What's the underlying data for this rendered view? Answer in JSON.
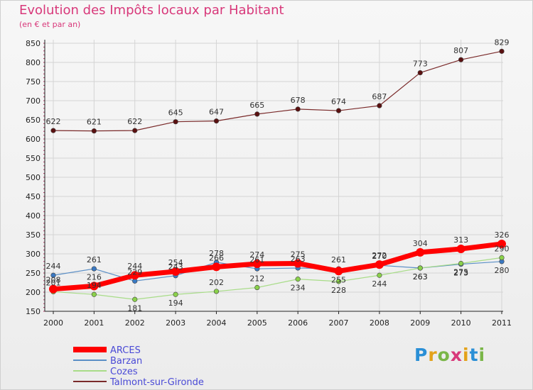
{
  "title": "Evolution des Impôts locaux par Habitant",
  "subtitle": "(en € et par an)",
  "logo": {
    "letters": [
      "P",
      "r",
      "o",
      "x",
      "i",
      "t",
      "i"
    ],
    "colors": [
      "#2a8fd6",
      "#e3a21a",
      "#7ab648",
      "#d8387a",
      "#e3a21a",
      "#2a8fd6",
      "#7ab648"
    ]
  },
  "chart_data": {
    "type": "line",
    "title": "Evolution des Impôts locaux par Habitant",
    "subtitle": "(en € et par an)",
    "xlabel": "",
    "ylabel": "",
    "categories": [
      "2000",
      "2001",
      "2002",
      "2003",
      "2004",
      "2005",
      "2006",
      "2007",
      "2008",
      "2009",
      "2010",
      "2011"
    ],
    "ylim": [
      150,
      850
    ],
    "yticks": [
      150,
      200,
      250,
      300,
      350,
      400,
      450,
      500,
      550,
      600,
      650,
      700,
      750,
      800,
      850
    ],
    "grid": true,
    "legend_position": "bottom-left",
    "series": [
      {
        "name": "Talmont-sur-Gironde",
        "color": "#7a2a2a",
        "marker": "#5a1010",
        "width": 1.2,
        "values": [
          622,
          621,
          622,
          645,
          647,
          665,
          678,
          674,
          687,
          773,
          807,
          829
        ],
        "labels": [
          "622",
          "621",
          "622",
          "645",
          "647",
          "665",
          "678",
          "674",
          "687",
          "773",
          "807",
          "829"
        ]
      },
      {
        "name": "Barzan",
        "color": "#5b8fc6",
        "marker": "#3a78c2",
        "width": 1.2,
        "values": [
          244,
          261,
          229,
          243,
          278,
          261,
          263,
          261,
          270,
          263,
          273,
          280
        ],
        "labels": [
          "244",
          "261",
          "229",
          "243",
          "278",
          "261",
          "263",
          "261",
          "270",
          "263",
          "273",
          "280"
        ]
      },
      {
        "name": "Cozes",
        "color": "#a8dc88",
        "marker": "#8ad14a",
        "width": 1.2,
        "values": [
          201,
          194,
          181,
          194,
          202,
          212,
          234,
          228,
          244,
          263,
          275,
          290
        ],
        "labels": [
          "201",
          "194",
          "181",
          "194",
          "202",
          "212",
          "234",
          "228",
          "244",
          "263",
          "275",
          "290"
        ]
      },
      {
        "name": "ARCES",
        "color": "#ff0000",
        "marker": "#ff0000",
        "width": 7,
        "values": [
          208,
          216,
          244,
          254,
          266,
          274,
          275,
          255,
          272,
          304,
          313,
          326
        ],
        "labels": [
          "208",
          "216",
          "244",
          "254",
          "266",
          "274",
          "275",
          "255",
          "272",
          "304",
          "313",
          "326"
        ]
      }
    ],
    "legend_order": [
      "ARCES",
      "Barzan",
      "Cozes",
      "Talmont-sur-Gironde"
    ],
    "label_offsets": {
      "Talmont-sur-Gironde": [
        "above",
        "above",
        "above",
        "above",
        "above",
        "above",
        "above",
        "above",
        "above",
        "above",
        "above",
        "above"
      ],
      "Barzan": [
        "above",
        "above",
        "above",
        "above",
        "above",
        "above",
        "above",
        "above",
        "above",
        "below",
        "below",
        "below"
      ],
      "Cozes": [
        "above",
        "above",
        "below",
        "below",
        "above",
        "above",
        "below",
        "below",
        "below",
        "below",
        "below",
        "above"
      ],
      "ARCES": [
        "above",
        "above",
        "above",
        "above",
        "above",
        "above",
        "above",
        "below",
        "above",
        "above",
        "above",
        "above"
      ]
    }
  }
}
